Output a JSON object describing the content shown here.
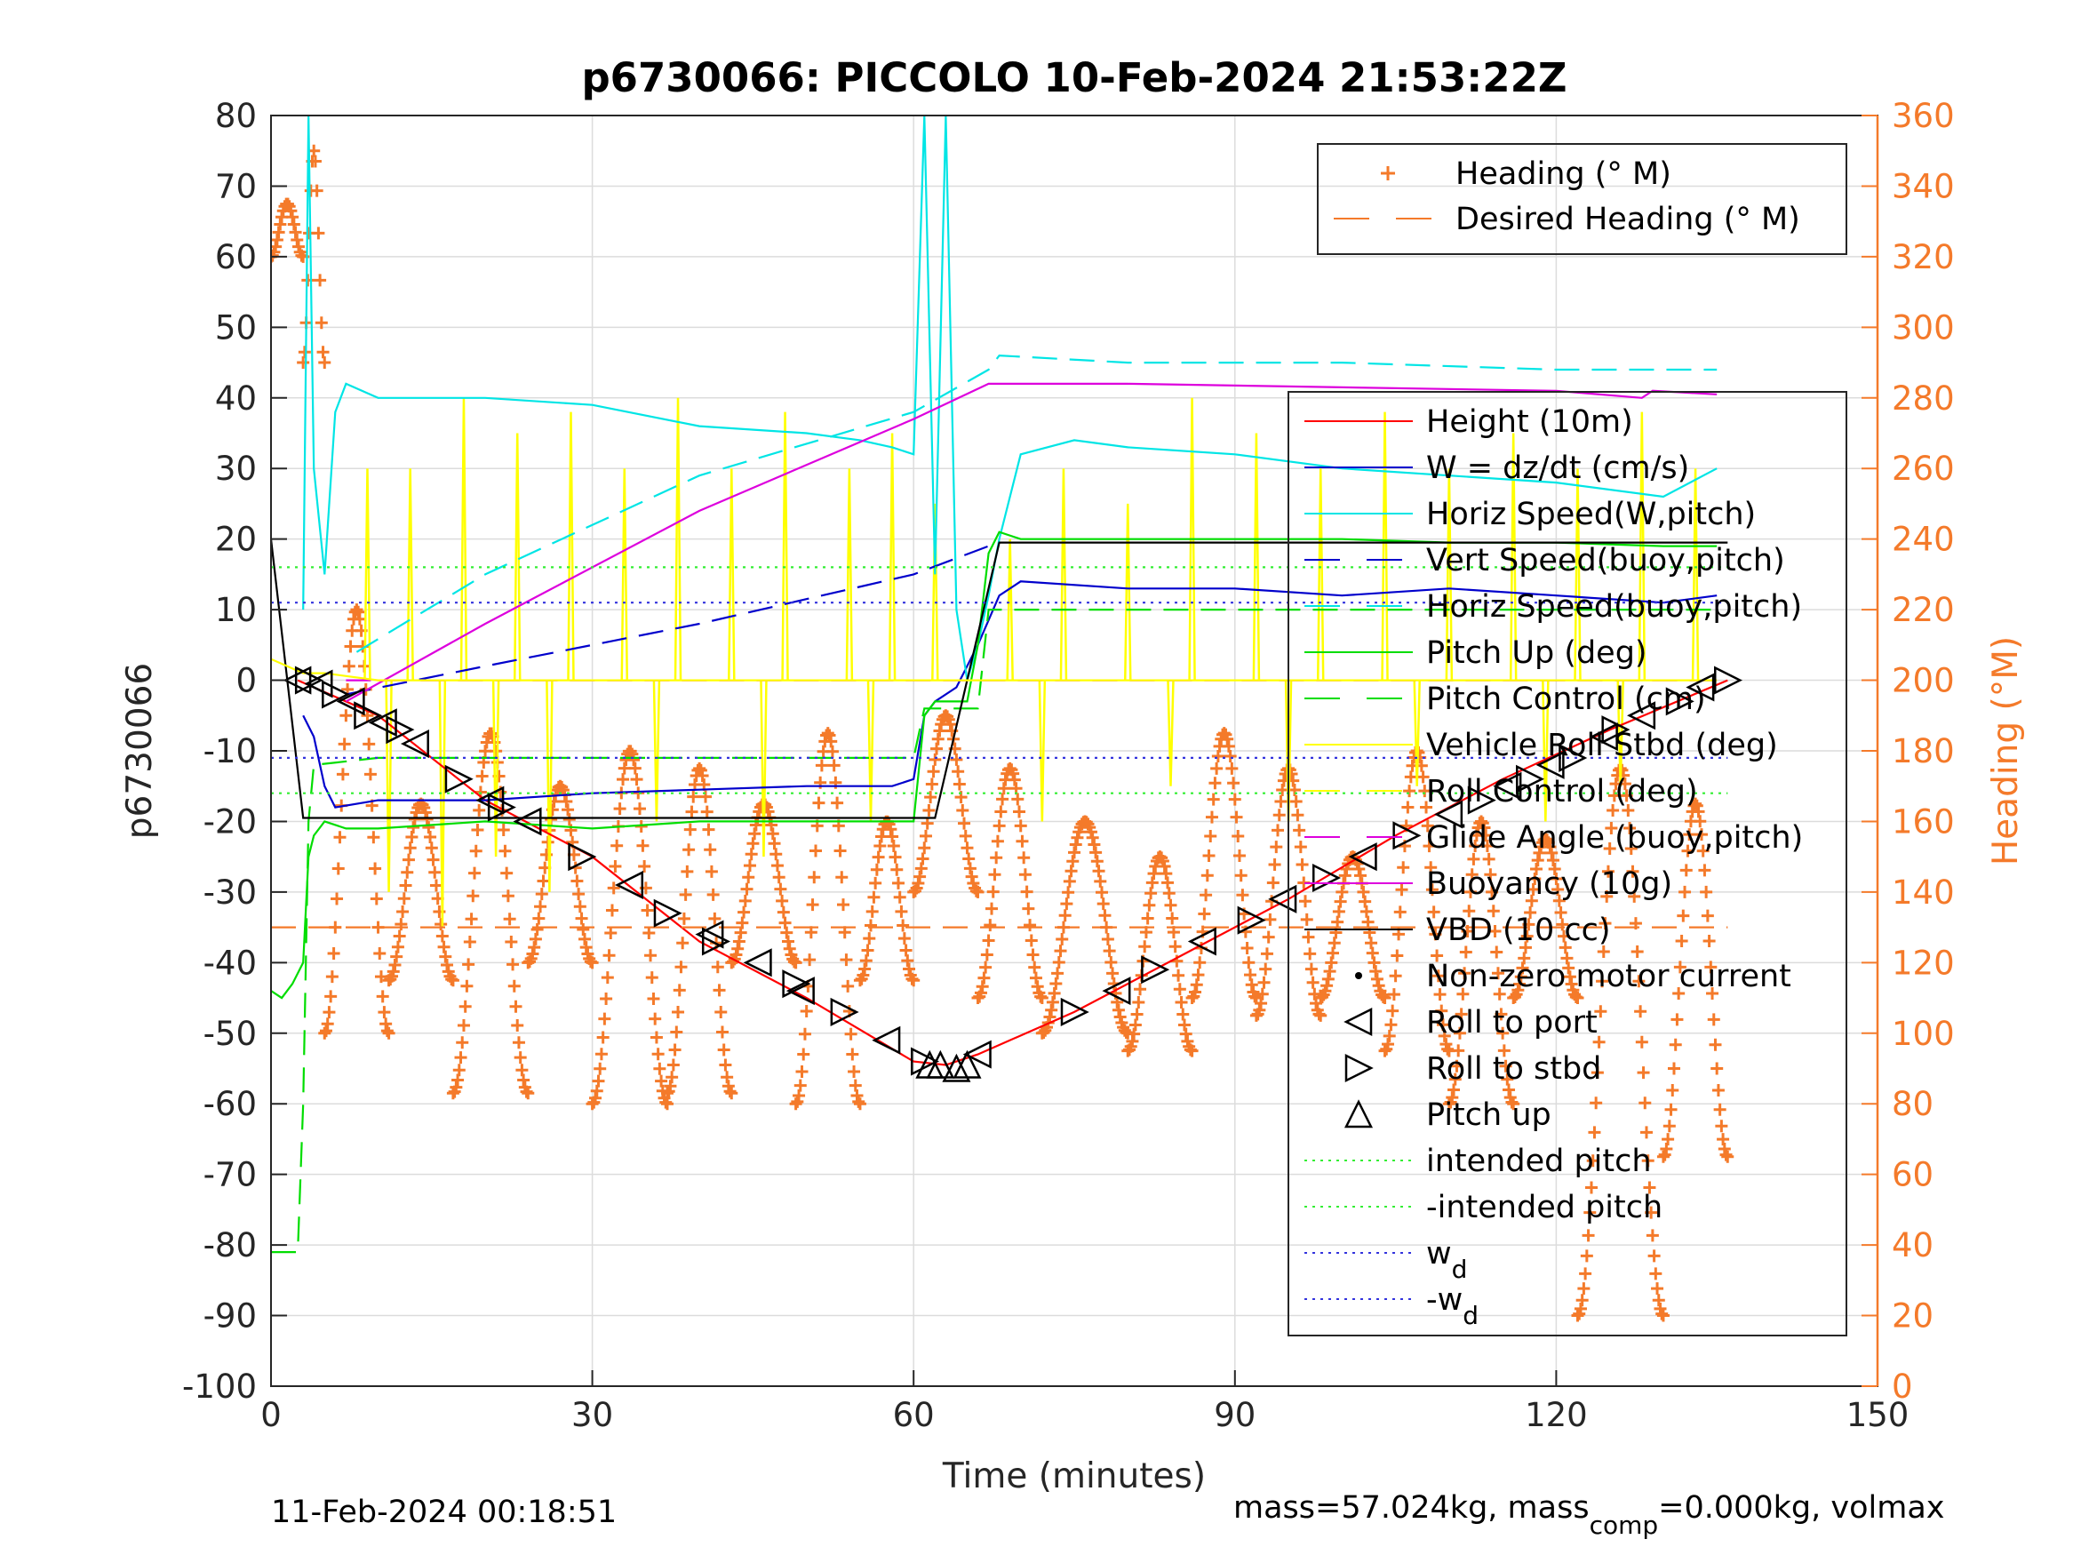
{
  "chart_data": {
    "type": "line",
    "title": "p6730066: PICCOLO 10-Feb-2024 21:53:22Z",
    "xlabel": "Time (minutes)",
    "ylabel_left": "p6730066",
    "ylabel_right": "Heading (°M)",
    "xlim": [
      0,
      150
    ],
    "ylim_left": [
      -100,
      80
    ],
    "ylim_right": [
      0,
      360
    ],
    "xticks": [
      "0",
      "30",
      "60",
      "90",
      "120",
      "150"
    ],
    "yticks_left": [
      "80",
      "70",
      "60",
      "50",
      "40",
      "30",
      "20",
      "10",
      "0",
      "-10",
      "-20",
      "-30",
      "-40",
      "-50",
      "-60",
      "-70",
      "-80",
      "-90",
      "-100"
    ],
    "yticks_right": [
      "360",
      "340",
      "320",
      "300",
      "280",
      "260",
      "240",
      "220",
      "200",
      "180",
      "160",
      "140",
      "120",
      "100",
      "80",
      "60",
      "40",
      "20",
      "0"
    ],
    "grid": true,
    "legend_top": [
      {
        "label": "Heading (° M)",
        "color": "#f47a2a",
        "style": "plus"
      },
      {
        "label": "Desired Heading (° M)",
        "color": "#f47a2a",
        "style": "dashed"
      }
    ],
    "legend_main": [
      {
        "label": "Height (10m)",
        "color": "#ff0000",
        "style": "solid"
      },
      {
        "label": "W = dz/dt (cm/s)",
        "color": "#0000cc",
        "style": "solid"
      },
      {
        "label": "Horiz Speed(W,pitch)",
        "color": "#00e5e5",
        "style": "solid"
      },
      {
        "label": "Vert Speed(buoy,pitch)",
        "color": "#0000cc",
        "style": "dashed"
      },
      {
        "label": "Horiz Speed(buoy,pitch)",
        "color": "#00e5e5",
        "style": "dashed"
      },
      {
        "label": "Pitch Up (deg)",
        "color": "#00dd00",
        "style": "solid"
      },
      {
        "label": "Pitch Control (cm)",
        "color": "#00dd00",
        "style": "dashed"
      },
      {
        "label": "Vehicle Roll Stbd (deg)",
        "color": "#ffff00",
        "style": "solid"
      },
      {
        "label": "Roll Control (deg)",
        "color": "#ffff00",
        "style": "dashed"
      },
      {
        "label": "Glide Angle (buoy,pitch)",
        "color": "#dd00dd",
        "style": "dashed"
      },
      {
        "label": "Buoyancy (10g)",
        "color": "#dd00dd",
        "style": "solid"
      },
      {
        "label": "VBD (10 cc)",
        "color": "#000000",
        "style": "solid"
      },
      {
        "label": "Non-zero motor current",
        "color": "#000000",
        "style": "dot"
      },
      {
        "label": "Roll to port",
        "color": "#000000",
        "style": "tri-left"
      },
      {
        "label": "Roll to stbd",
        "color": "#000000",
        "style": "tri-right"
      },
      {
        "label": "Pitch up",
        "color": "#000000",
        "style": "tri-up"
      },
      {
        "label": "intended pitch",
        "color": "#33ee33",
        "style": "dotted"
      },
      {
        "label": "-intended pitch",
        "color": "#33ee33",
        "style": "dotted"
      },
      {
        "label": "w",
        "sub": "d",
        "color": "#3333dd",
        "style": "dotted"
      },
      {
        "label": "-w",
        "sub": "d",
        "color": "#3333dd",
        "style": "dotted"
      }
    ],
    "series": [
      {
        "name": "Height (10m)",
        "color": "#ff0000",
        "x": [
          2.5,
          10,
          20,
          30,
          40,
          50,
          60,
          63,
          66,
          75,
          85,
          95,
          105,
          115,
          125,
          136
        ],
        "y": [
          0,
          -5,
          -17,
          -25,
          -37,
          -45,
          -54,
          -54.5,
          -53,
          -47,
          -39,
          -31,
          -22,
          -14,
          -7,
          0
        ]
      },
      {
        "name": "W = dz/dt (cm/s)",
        "color": "#0000cc",
        "x": [
          3,
          4,
          5,
          6,
          10,
          20,
          30,
          40,
          50,
          58,
          60,
          61,
          62,
          64,
          66,
          68,
          70,
          80,
          90,
          100,
          110,
          120,
          130,
          135
        ],
        "y": [
          -5,
          -8,
          -15,
          -18,
          -17,
          -17,
          -16,
          -15.5,
          -15,
          -15,
          -14,
          -5,
          -3,
          -1,
          5,
          12,
          14,
          13,
          13,
          12,
          13,
          12,
          11,
          12
        ]
      },
      {
        "name": "Horiz Speed(W,pitch)",
        "color": "#00e5e5",
        "x": [
          3,
          3.5,
          4,
          5,
          6,
          7,
          10,
          20,
          30,
          40,
          50,
          55,
          58,
          60,
          61,
          62,
          63,
          64,
          65,
          66,
          67,
          68,
          70,
          75,
          80,
          90,
          100,
          110,
          120,
          130,
          135
        ],
        "y": [
          10,
          80,
          30,
          15,
          38,
          42,
          40,
          40,
          39,
          36,
          35,
          34,
          33,
          32,
          80,
          15,
          80,
          10,
          0,
          5,
          12,
          20,
          32,
          34,
          33,
          32,
          30,
          29,
          28,
          26,
          30
        ]
      },
      {
        "name": "Vert Speed(buoy,pitch)",
        "color": "#0000cc",
        "x": [
          7,
          20,
          40,
          60,
          67
        ],
        "y": [
          -2,
          2,
          8,
          15,
          19
        ]
      },
      {
        "name": "Horiz Speed(buoy,pitch)",
        "color": "#00e5e5",
        "x": [
          8,
          20,
          40,
          60,
          67,
          68,
          80,
          100,
          120,
          135
        ],
        "y": [
          4,
          15,
          29,
          38,
          44,
          46,
          45,
          45,
          44,
          44
        ]
      },
      {
        "name": "Pitch Up (deg)",
        "color": "#00dd00",
        "x": [
          0,
          1,
          2,
          3,
          3.5,
          4,
          5,
          7,
          10,
          20,
          30,
          40,
          50,
          60,
          61,
          62,
          65,
          66,
          67,
          68,
          70,
          80,
          90,
          100,
          110,
          120,
          130,
          135
        ],
        "y": [
          -44,
          -45,
          -43,
          -40,
          -25,
          -22,
          -20,
          -21,
          -21,
          -20,
          -21,
          -20,
          -20,
          -20,
          -5,
          -3,
          -3,
          5,
          18,
          21,
          20,
          20,
          20,
          20,
          19.5,
          19.5,
          19,
          19
        ]
      },
      {
        "name": "Pitch Control (cm)",
        "color": "#00dd00",
        "x": [
          0,
          2.5,
          3,
          3.5,
          4,
          10,
          60,
          61,
          66,
          67,
          68,
          135
        ],
        "y": [
          -81,
          -81,
          -60,
          -20,
          -12,
          -11,
          -11,
          -4,
          -4,
          10,
          10,
          10
        ]
      },
      {
        "name": "Buoyancy (10g)",
        "color": "#dd00dd",
        "x": [
          7,
          20,
          40,
          60,
          67,
          80,
          100,
          120,
          128,
          129,
          135
        ],
        "y": [
          -3,
          8,
          24,
          37,
          42,
          42,
          41.5,
          41,
          40,
          41,
          40.5
        ]
      },
      {
        "name": "Glide Angle (buoy,pitch)",
        "color": "#dd00dd",
        "x": [
          7,
          135
        ],
        "y": [
          0,
          0
        ]
      },
      {
        "name": "VBD (10 cc)",
        "color": "#000000",
        "x": [
          0,
          3,
          10,
          40,
          62,
          68,
          80,
          100,
          120,
          136
        ],
        "y": [
          20,
          -19.5,
          -19.5,
          -19.5,
          -19.5,
          19.5,
          19.5,
          19.5,
          19.5,
          19.5
        ]
      },
      {
        "name": "Vehicle Roll Stbd (deg)",
        "color": "#ffff00",
        "x": [
          0,
          3,
          5,
          10,
          20,
          30,
          40,
          50,
          60,
          70,
          80,
          90,
          100,
          110,
          120,
          130,
          135
        ],
        "y": [
          3,
          1,
          1,
          0,
          0,
          0,
          0,
          0,
          0,
          0,
          0,
          0,
          0,
          0,
          0,
          0,
          0
        ]
      },
      {
        "name": "intended pitch",
        "color": "#33ee33",
        "x": [
          0,
          136
        ],
        "y": [
          16,
          16
        ]
      },
      {
        "name": "-intended pitch",
        "color": "#33ee33",
        "x": [
          0,
          136
        ],
        "y": [
          -16,
          -16
        ]
      },
      {
        "name": "w_d",
        "color": "#3333dd",
        "x": [
          0,
          136
        ],
        "y": [
          11,
          11
        ]
      },
      {
        "name": "-w_d",
        "color": "#3333dd",
        "x": [
          0,
          136
        ],
        "y": [
          -11,
          -11
        ]
      },
      {
        "name": "Desired Heading (° M)",
        "color": "#f47a2a",
        "axis": "right",
        "x": [
          0,
          136
        ],
        "y": [
          130,
          130
        ]
      }
    ],
    "heading_cycles": [
      {
        "start": 0,
        "end": 3,
        "lo": 320,
        "hi": 335
      },
      {
        "start": 3,
        "end": 5,
        "lo": 290,
        "hi": 350
      },
      {
        "start": 5,
        "end": 11,
        "lo": 100,
        "hi": 220
      },
      {
        "start": 11,
        "end": 17,
        "lo": 115,
        "hi": 165
      },
      {
        "start": 17,
        "end": 24,
        "lo": 83,
        "hi": 185
      },
      {
        "start": 24,
        "end": 30,
        "lo": 120,
        "hi": 170
      },
      {
        "start": 30,
        "end": 37,
        "lo": 80,
        "hi": 180
      },
      {
        "start": 37,
        "end": 43,
        "lo": 83,
        "hi": 175
      },
      {
        "start": 43,
        "end": 49,
        "lo": 120,
        "hi": 165
      },
      {
        "start": 49,
        "end": 55,
        "lo": 80,
        "hi": 185
      },
      {
        "start": 55,
        "end": 60,
        "lo": 115,
        "hi": 160
      },
      {
        "start": 60,
        "end": 66,
        "lo": 140,
        "hi": 190
      },
      {
        "start": 66,
        "end": 72,
        "lo": 110,
        "hi": 175
      },
      {
        "start": 72,
        "end": 80,
        "lo": 100,
        "hi": 160
      },
      {
        "start": 80,
        "end": 86,
        "lo": 95,
        "hi": 150
      },
      {
        "start": 86,
        "end": 92,
        "lo": 110,
        "hi": 185
      },
      {
        "start": 92,
        "end": 98,
        "lo": 105,
        "hi": 175
      },
      {
        "start": 98,
        "end": 104,
        "lo": 110,
        "hi": 150
      },
      {
        "start": 104,
        "end": 110,
        "lo": 95,
        "hi": 180
      },
      {
        "start": 110,
        "end": 116,
        "lo": 80,
        "hi": 160
      },
      {
        "start": 116,
        "end": 122,
        "lo": 110,
        "hi": 155
      },
      {
        "start": 122,
        "end": 130,
        "lo": 20,
        "hi": 175
      },
      {
        "start": 130,
        "end": 136,
        "lo": 65,
        "hi": 165
      }
    ],
    "roll_spikes": [
      {
        "x": 9,
        "y": 30
      },
      {
        "x": 13,
        "y": 30
      },
      {
        "x": 18,
        "y": 40
      },
      {
        "x": 23,
        "y": 35
      },
      {
        "x": 28,
        "y": 38
      },
      {
        "x": 33,
        "y": 30
      },
      {
        "x": 38,
        "y": 40
      },
      {
        "x": 43,
        "y": 30
      },
      {
        "x": 48,
        "y": 38
      },
      {
        "x": 54,
        "y": 30
      },
      {
        "x": 58,
        "y": 35
      },
      {
        "x": 62,
        "y": 25
      },
      {
        "x": 69,
        "y": 20
      },
      {
        "x": 74,
        "y": 30
      },
      {
        "x": 80,
        "y": 25
      },
      {
        "x": 86,
        "y": 40
      },
      {
        "x": 92,
        "y": 35
      },
      {
        "x": 98,
        "y": 30
      },
      {
        "x": 104,
        "y": 38
      },
      {
        "x": 110,
        "y": 30
      },
      {
        "x": 116,
        "y": 35
      },
      {
        "x": 122,
        "y": 30
      },
      {
        "x": 128,
        "y": 38
      },
      {
        "x": 133,
        "y": 30
      },
      {
        "x": 11,
        "y": -30
      },
      {
        "x": 16,
        "y": -35
      },
      {
        "x": 21,
        "y": -25
      },
      {
        "x": 26,
        "y": -30
      },
      {
        "x": 36,
        "y": -20
      },
      {
        "x": 46,
        "y": -25
      },
      {
        "x": 56,
        "y": -20
      },
      {
        "x": 72,
        "y": -20
      },
      {
        "x": 84,
        "y": -15
      },
      {
        "x": 95,
        "y": -20
      },
      {
        "x": 107,
        "y": -15
      },
      {
        "x": 119,
        "y": -20
      },
      {
        "x": 126,
        "y": -15
      }
    ],
    "roll_markers": [
      {
        "x": 2.5,
        "y": 0,
        "dir": "L"
      },
      {
        "x": 3.5,
        "y": 0,
        "dir": "R"
      },
      {
        "x": 4.5,
        "y": -0.5,
        "dir": "L"
      },
      {
        "x": 6,
        "y": -2,
        "dir": "R"
      },
      {
        "x": 7.5,
        "y": -3,
        "dir": "L"
      },
      {
        "x": 9,
        "y": -5,
        "dir": "R"
      },
      {
        "x": 10.5,
        "y": -6,
        "dir": "L"
      },
      {
        "x": 12,
        "y": -7,
        "dir": "R"
      },
      {
        "x": 13.5,
        "y": -9,
        "dir": "L"
      },
      {
        "x": 17.5,
        "y": -14,
        "dir": "R"
      },
      {
        "x": 20.5,
        "y": -17,
        "dir": "L"
      },
      {
        "x": 21.5,
        "y": -18,
        "dir": "R"
      },
      {
        "x": 24,
        "y": -20,
        "dir": "L"
      },
      {
        "x": 29,
        "y": -25,
        "dir": "R"
      },
      {
        "x": 33.5,
        "y": -29,
        "dir": "L"
      },
      {
        "x": 37,
        "y": -33,
        "dir": "R"
      },
      {
        "x": 41,
        "y": -36,
        "dir": "L"
      },
      {
        "x": 41.5,
        "y": -37,
        "dir": "R"
      },
      {
        "x": 45.5,
        "y": -40,
        "dir": "L"
      },
      {
        "x": 49,
        "y": -43,
        "dir": "R"
      },
      {
        "x": 49.5,
        "y": -44,
        "dir": "L"
      },
      {
        "x": 53.5,
        "y": -47,
        "dir": "R"
      },
      {
        "x": 57.5,
        "y": -51,
        "dir": "L"
      },
      {
        "x": 61,
        "y": -54,
        "dir": "R"
      },
      {
        "x": 66,
        "y": -53,
        "dir": "L"
      },
      {
        "x": 75,
        "y": -47,
        "dir": "R"
      },
      {
        "x": 79,
        "y": -44,
        "dir": "L"
      },
      {
        "x": 82.5,
        "y": -41,
        "dir": "R"
      },
      {
        "x": 87,
        "y": -37,
        "dir": "L"
      },
      {
        "x": 91.5,
        "y": -34,
        "dir": "R"
      },
      {
        "x": 94.5,
        "y": -31,
        "dir": "L"
      },
      {
        "x": 98.5,
        "y": -28,
        "dir": "R"
      },
      {
        "x": 102,
        "y": -25,
        "dir": "L"
      },
      {
        "x": 106,
        "y": -22,
        "dir": "R"
      },
      {
        "x": 110,
        "y": -19,
        "dir": "L"
      },
      {
        "x": 113,
        "y": -17,
        "dir": "R"
      },
      {
        "x": 115.5,
        "y": -15,
        "dir": "L"
      },
      {
        "x": 117.5,
        "y": -14,
        "dir": "R"
      },
      {
        "x": 119.5,
        "y": -12,
        "dir": "L"
      },
      {
        "x": 121.5,
        "y": -11,
        "dir": "R"
      },
      {
        "x": 124.5,
        "y": -8,
        "dir": "L"
      },
      {
        "x": 125.5,
        "y": -7,
        "dir": "R"
      },
      {
        "x": 128,
        "y": -5,
        "dir": "L"
      },
      {
        "x": 131.5,
        "y": -3,
        "dir": "R"
      },
      {
        "x": 133.5,
        "y": -1,
        "dir": "L"
      },
      {
        "x": 136,
        "y": 0,
        "dir": "R"
      }
    ],
    "pitch_markers": [
      {
        "x": 61.5,
        "y": -54.5
      },
      {
        "x": 62.5,
        "y": -54.5
      },
      {
        "x": 64,
        "y": -55
      },
      {
        "x": 65,
        "y": -54.5
      }
    ]
  },
  "footer": {
    "timestamp": "11-Feb-2024 00:18:51",
    "mass_prefix": "mass=57.024kg, mass",
    "mass_sub": "comp",
    "mass_suffix": "=0.000kg, volmax"
  }
}
